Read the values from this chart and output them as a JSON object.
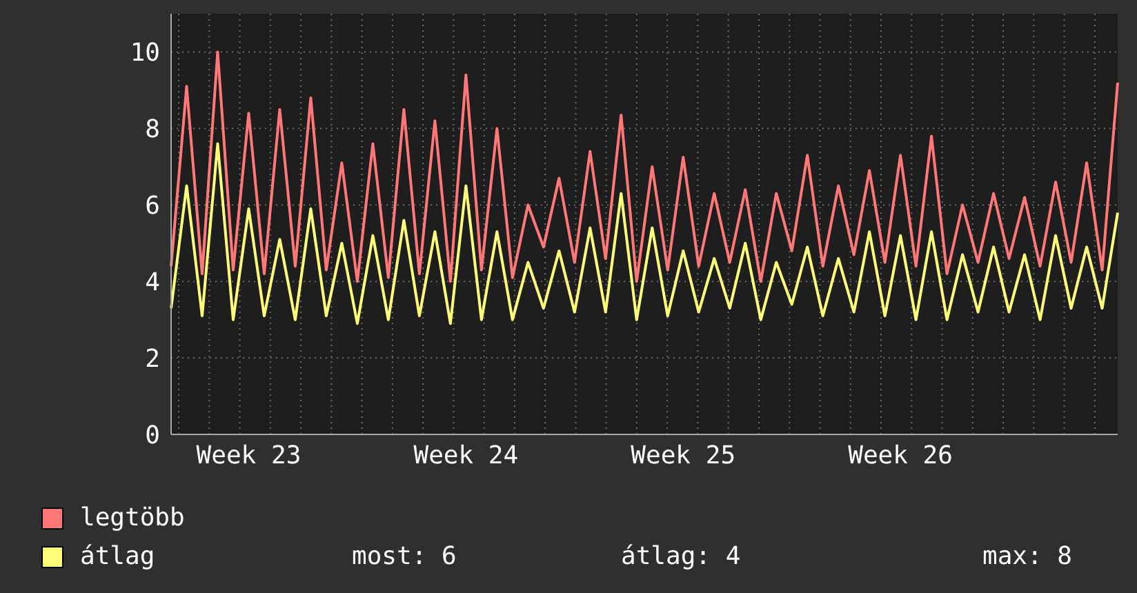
{
  "chart_data": {
    "type": "line",
    "categories": [
      null,
      null,
      null,
      null,
      null,
      "Week 23",
      null,
      null,
      null,
      null,
      null,
      null,
      null,
      null,
      null,
      null,
      null,
      null,
      null,
      "Week 24",
      null,
      null,
      null,
      null,
      null,
      null,
      null,
      null,
      null,
      null,
      null,
      null,
      null,
      "Week 25",
      null,
      null,
      null,
      null,
      null,
      null,
      null,
      null,
      null,
      null,
      null,
      null,
      null,
      "Week 26",
      null,
      null,
      null,
      null,
      null,
      null,
      null,
      null,
      null,
      null,
      null,
      null,
      null,
      null
    ],
    "series": [
      {
        "name": "legtöbb",
        "color": "#ff7777",
        "values": [
          4.4,
          9.1,
          4.2,
          10.0,
          4.3,
          8.4,
          4.2,
          8.5,
          4.4,
          8.8,
          4.3,
          7.1,
          4.0,
          7.6,
          4.1,
          8.5,
          4.2,
          8.2,
          4.0,
          9.4,
          4.3,
          8.0,
          4.1,
          6.0,
          4.9,
          6.7,
          4.5,
          7.4,
          4.6,
          8.35,
          4.0,
          7.0,
          4.3,
          7.25,
          4.4,
          6.3,
          4.5,
          6.4,
          4.0,
          6.3,
          4.8,
          7.3,
          4.4,
          6.5,
          4.7,
          6.9,
          4.5,
          7.3,
          4.4,
          7.8,
          4.2,
          6.0,
          4.5,
          6.3,
          4.6,
          6.2,
          4.4,
          6.6,
          4.5,
          7.1,
          4.3,
          9.2
        ]
      },
      {
        "name": "átlag",
        "color": "#ffff77",
        "values": [
          3.3,
          6.5,
          3.1,
          7.6,
          3.0,
          5.9,
          3.1,
          5.1,
          3.0,
          5.9,
          3.1,
          5.0,
          2.9,
          5.2,
          3.0,
          5.6,
          3.1,
          5.3,
          2.9,
          6.5,
          3.0,
          5.3,
          3.0,
          4.5,
          3.3,
          4.8,
          3.2,
          5.4,
          3.2,
          6.3,
          3.0,
          5.4,
          3.1,
          4.8,
          3.2,
          4.6,
          3.3,
          5.0,
          3.0,
          4.5,
          3.4,
          4.9,
          3.1,
          4.6,
          3.2,
          5.3,
          3.1,
          5.2,
          3.0,
          5.3,
          3.0,
          4.7,
          3.2,
          4.9,
          3.2,
          4.7,
          3.0,
          5.2,
          3.3,
          4.9,
          3.3,
          5.8
        ]
      }
    ],
    "ylim": [
      0,
      11
    ],
    "yticks": [
      0,
      2,
      4,
      6,
      8,
      10
    ],
    "grid": true,
    "legend": "bottom",
    "marker": "none",
    "annotations": [
      "most: 6",
      "átlag: 4",
      "max: 8"
    ]
  }
}
